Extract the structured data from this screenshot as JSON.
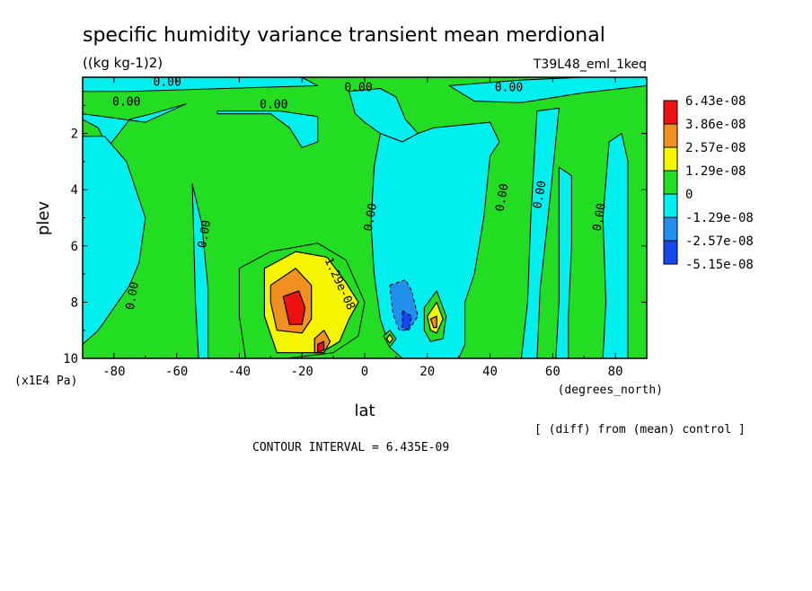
{
  "chart_data": {
    "type": "heatmap",
    "title": "specific humidity variance transient mean merdional",
    "units": "((kg kg-1)2)",
    "experiment": "T39L48_eml_1keq",
    "xlabel": "lat",
    "x_units": "(degrees_north)",
    "ylabel": "plev",
    "y_units": "(x1E4 Pa)",
    "xlim": [
      -90,
      90
    ],
    "ylim": [
      0,
      10
    ],
    "y_inverted": true,
    "x_ticks": [
      -80,
      -60,
      -40,
      -20,
      0,
      20,
      40,
      60,
      80
    ],
    "x_tick_labels": [
      "-80",
      "-60",
      "-40",
      "-20",
      "0",
      "20",
      "40",
      "60",
      "80"
    ],
    "y_ticks": [
      2,
      4,
      6,
      8,
      10
    ],
    "y_tick_labels": [
      "2",
      "4",
      "6",
      "8",
      "10"
    ],
    "colorbar": {
      "labels": [
        "6.43e-08",
        "3.86e-08",
        "2.57e-08",
        "1.29e-08",
        "0",
        "-1.29e-08",
        "-2.57e-08",
        "-5.15e-08"
      ],
      "colors": [
        "#ee1111",
        "#f09020",
        "#f5f500",
        "#22dd22",
        "#00f0f0",
        "#2090ee",
        "#1448ee"
      ]
    },
    "contour_labels": [
      {
        "text": "0.00",
        "lat": -63,
        "plev": 0.3
      },
      {
        "text": "0.00",
        "lat": -76,
        "plev": 1.0
      },
      {
        "text": "0.00",
        "lat": -29,
        "plev": 1.1
      },
      {
        "text": "0.00",
        "lat": -2,
        "plev": 0.5
      },
      {
        "text": "0.00",
        "lat": 46,
        "plev": 0.5
      },
      {
        "text": "0.00",
        "lat": 45,
        "plev": 4.3
      },
      {
        "text": "0.00",
        "lat": 57,
        "plev": 4.2
      },
      {
        "text": "0.00",
        "lat": 76,
        "plev": 5.0
      },
      {
        "text": "0.00",
        "lat": -50,
        "plev": 5.6
      },
      {
        "text": "0.00",
        "lat": -73,
        "plev": 7.8
      },
      {
        "text": "0.00",
        "lat": 3,
        "plev": 5.0
      },
      {
        "text": "1.29e-08",
        "lat": -9,
        "plev": 7.4
      }
    ],
    "regions": [
      {
        "name": "green-background",
        "level": 1,
        "points": [
          [
            -90,
            0
          ],
          [
            90,
            0
          ],
          [
            90,
            10
          ],
          [
            -90,
            10
          ]
        ]
      },
      {
        "name": "top-cyan-band-west",
        "level": 0,
        "points": [
          [
            -90,
            0
          ],
          [
            -20,
            0
          ],
          [
            -15,
            0.3
          ],
          [
            -45,
            0.4
          ],
          [
            -60,
            0.45
          ],
          [
            -75,
            0.5
          ],
          [
            -90,
            0.5
          ]
        ]
      },
      {
        "name": "top-cyan-band-east",
        "level": 0,
        "points": [
          [
            27,
            0.3
          ],
          [
            50,
            0.1
          ],
          [
            70,
            0
          ],
          [
            90,
            0
          ],
          [
            90,
            0.3
          ],
          [
            70,
            0.55
          ],
          [
            50,
            0.9
          ],
          [
            35,
            0.85
          ]
        ]
      },
      {
        "name": "top-cyan-blob-west",
        "level": 0,
        "points": [
          [
            -90,
            1.3
          ],
          [
            -70,
            1.6
          ],
          [
            -60,
            1.1
          ],
          [
            -57,
            0.95
          ],
          [
            -68,
            1.3
          ],
          [
            -75,
            1.5
          ],
          [
            -82,
            2.5
          ],
          [
            -85,
            1.8
          ],
          [
            -90,
            1.5
          ]
        ]
      },
      {
        "name": "top-cyan-blob-center",
        "level": 0,
        "points": [
          [
            -47,
            1.2
          ],
          [
            -35,
            1.2
          ],
          [
            -27,
            1.2
          ],
          [
            -15,
            1.4
          ],
          [
            -15,
            2.3
          ],
          [
            -20,
            2.5
          ],
          [
            -24,
            1.8
          ],
          [
            -30,
            1.3
          ],
          [
            -40,
            1.3
          ],
          [
            -47,
            1.3
          ]
        ]
      },
      {
        "name": "top-cyan-mid",
        "level": 0,
        "points": [
          [
            -5,
            0.5
          ],
          [
            5,
            0.4
          ],
          [
            10,
            0.7
          ],
          [
            13,
            1.5
          ],
          [
            17,
            2.0
          ],
          [
            12,
            2.3
          ],
          [
            5,
            2.0
          ],
          [
            0,
            1.6
          ],
          [
            -3,
            1.3
          ]
        ]
      },
      {
        "name": "west-cyan-slab",
        "level": 0,
        "points": [
          [
            -90,
            2.1
          ],
          [
            -83,
            2.1
          ],
          [
            -76,
            3.0
          ],
          [
            -70,
            5.0
          ],
          [
            -72,
            6.6
          ],
          [
            -75,
            7.4
          ],
          [
            -80,
            8.2
          ],
          [
            -85,
            9.0
          ],
          [
            -90,
            9.5
          ]
        ]
      },
      {
        "name": "west-thin-cyan",
        "level": 0,
        "points": [
          [
            -55,
            3.8
          ],
          [
            -52,
            5.2
          ],
          [
            -50,
            7.5
          ],
          [
            -50,
            10
          ],
          [
            -53,
            10
          ],
          [
            -54,
            8.0
          ]
        ]
      },
      {
        "name": "central-cyan",
        "level": 0,
        "points": [
          [
            3,
            3.2
          ],
          [
            5,
            2.0
          ],
          [
            12,
            2.3
          ],
          [
            17,
            2.0
          ],
          [
            22,
            1.8
          ],
          [
            40,
            1.6
          ],
          [
            43,
            2.3
          ],
          [
            40,
            2.8
          ],
          [
            38,
            5.0
          ],
          [
            35,
            7.0
          ],
          [
            32,
            8.0
          ],
          [
            32,
            9.5
          ],
          [
            30,
            10
          ],
          [
            12,
            10
          ],
          [
            8,
            9.6
          ],
          [
            5,
            8.6
          ],
          [
            3,
            7.0
          ],
          [
            2,
            5.2
          ]
        ]
      },
      {
        "name": "east-cyan-slab-1",
        "level": 0,
        "points": [
          [
            55,
            1.2
          ],
          [
            62,
            1.1
          ],
          [
            60,
            3.4
          ],
          [
            58,
            5.5
          ],
          [
            56,
            7.5
          ],
          [
            55,
            10
          ],
          [
            50,
            10
          ],
          [
            52,
            8.0
          ],
          [
            53,
            5.0
          ]
        ]
      },
      {
        "name": "east-cyan-slab-2",
        "level": 0,
        "points": [
          [
            62,
            3.2
          ],
          [
            66,
            3.5
          ],
          [
            66,
            6.0
          ],
          [
            65,
            8.5
          ],
          [
            65,
            10
          ],
          [
            61,
            10
          ],
          [
            62,
            8.0
          ],
          [
            62,
            5.0
          ]
        ]
      },
      {
        "name": "east-cyan-slab-3",
        "level": 0,
        "points": [
          [
            78,
            2.3
          ],
          [
            82,
            2.0
          ],
          [
            84,
            3.0
          ],
          [
            84,
            6.0
          ],
          [
            84,
            10
          ],
          [
            76,
            10
          ],
          [
            77,
            8.0
          ],
          [
            76,
            5.0
          ]
        ]
      },
      {
        "name": "neg-blue-core",
        "level": -1,
        "points": [
          [
            8,
            7.4
          ],
          [
            13,
            7.2
          ],
          [
            15,
            7.6
          ],
          [
            17,
            8.5
          ],
          [
            14,
            9.0
          ],
          [
            11,
            9.0
          ],
          [
            9,
            8.4
          ]
        ]
      },
      {
        "name": "neg-blue-inner",
        "level": -2,
        "points": [
          [
            12,
            8.3
          ],
          [
            15,
            8.5
          ],
          [
            14,
            9.0
          ],
          [
            12,
            8.9
          ]
        ]
      },
      {
        "name": "pos-green-ring-1",
        "level": 1,
        "points": [
          [
            -40,
            6.8
          ],
          [
            -30,
            6.2
          ],
          [
            -15,
            5.9
          ],
          [
            -6,
            6.5
          ],
          [
            0,
            8.0
          ],
          [
            -2,
            9.2
          ],
          [
            -10,
            9.8
          ],
          [
            -25,
            10
          ],
          [
            -38,
            10
          ],
          [
            -40,
            8.5
          ]
        ]
      },
      {
        "name": "pos-yellow-main",
        "level": 2,
        "points": [
          [
            -32,
            6.8
          ],
          [
            -22,
            6.2
          ],
          [
            -12,
            6.4
          ],
          [
            -6,
            7.3
          ],
          [
            -2,
            8.0
          ],
          [
            -5,
            8.6
          ],
          [
            -8,
            9.4
          ],
          [
            -14,
            9.8
          ],
          [
            -28,
            9.8
          ],
          [
            -32,
            8.5
          ]
        ]
      },
      {
        "name": "pos-orange-main",
        "level": 3,
        "points": [
          [
            -30,
            7.4
          ],
          [
            -22,
            6.8
          ],
          [
            -17,
            7.4
          ],
          [
            -17,
            8.6
          ],
          [
            -20,
            9.1
          ],
          [
            -28,
            9.0
          ],
          [
            -30,
            8.0
          ]
        ]
      },
      {
        "name": "pos-orange-small",
        "level": 3,
        "points": [
          [
            -16,
            9.3
          ],
          [
            -13,
            9.0
          ],
          [
            -11,
            9.4
          ],
          [
            -13,
            9.8
          ],
          [
            -16,
            9.8
          ]
        ]
      },
      {
        "name": "pos-red-main",
        "level": 4,
        "points": [
          [
            -26,
            7.8
          ],
          [
            -21,
            7.6
          ],
          [
            -19,
            8.2
          ],
          [
            -20,
            8.8
          ],
          [
            -24,
            8.8
          ]
        ]
      },
      {
        "name": "pos-red-small",
        "level": 4,
        "points": [
          [
            -15,
            9.5
          ],
          [
            -13,
            9.4
          ],
          [
            -13,
            9.7
          ],
          [
            -15,
            9.8
          ]
        ]
      },
      {
        "name": "pos-green-east",
        "level": 1,
        "points": [
          [
            19,
            8.2
          ],
          [
            23,
            7.6
          ],
          [
            26,
            8.5
          ],
          [
            25,
            9.3
          ],
          [
            21,
            9.4
          ],
          [
            19,
            9.0
          ]
        ]
      },
      {
        "name": "pos-yellow-east",
        "level": 2,
        "points": [
          [
            20,
            8.5
          ],
          [
            23,
            8.0
          ],
          [
            25,
            8.6
          ],
          [
            23,
            9.1
          ],
          [
            21,
            9.0
          ]
        ]
      },
      {
        "name": "pos-orange-east",
        "level": 3,
        "points": [
          [
            21,
            8.6
          ],
          [
            23,
            8.5
          ],
          [
            23,
            8.9
          ],
          [
            22,
            8.9
          ]
        ]
      },
      {
        "name": "pos-green-dot",
        "level": 1,
        "points": [
          [
            6,
            9.2
          ],
          [
            8,
            9.0
          ],
          [
            10,
            9.3
          ],
          [
            8,
            9.6
          ]
        ]
      },
      {
        "name": "pos-yellow-dot",
        "level": 2,
        "points": [
          [
            7,
            9.3
          ],
          [
            8,
            9.15
          ],
          [
            9,
            9.3
          ],
          [
            8,
            9.45
          ]
        ]
      }
    ]
  },
  "footer": {
    "diff_note": "[ (diff) from (mean) control ]",
    "contour_interval": "CONTOUR INTERVAL = 6.435E-09"
  }
}
